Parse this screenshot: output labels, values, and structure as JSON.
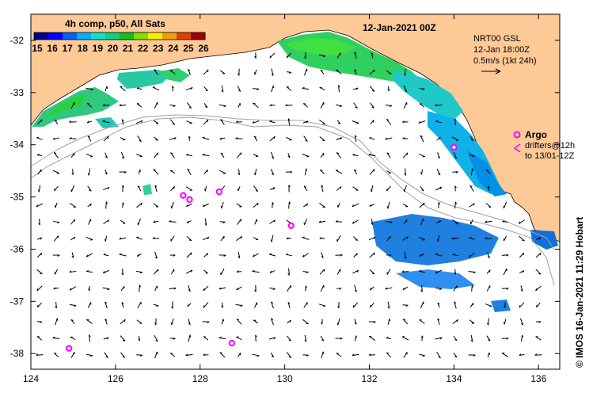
{
  "map": {
    "title": "12-Jan-2021 00Z",
    "colorbar": {
      "title": "4h comp, p50, All Sats",
      "ticks": [
        "15",
        "16",
        "17",
        "18",
        "19",
        "20",
        "21",
        "22",
        "23",
        "24",
        "25",
        "26"
      ],
      "colors": [
        "#00008f",
        "#0000ff",
        "#0060ff",
        "#00b0ff",
        "#10e0d0",
        "#10d080",
        "#10c020",
        "#80e000",
        "#f0f000",
        "#f0a000",
        "#e04000",
        "#a00000"
      ]
    },
    "currents_label": {
      "line1": "NRT00 GSL",
      "line2": "12-Jan 18:00Z",
      "line3": "0.5m/s (1kt 24h)"
    },
    "argo": {
      "label": "Argo",
      "drifters_line1": "drifters@12h",
      "drifters_line2": "to 13/01-12Z",
      "color": "#ff00ff"
    },
    "x_axis": {
      "ticks": [
        "124",
        "126",
        "128",
        "130",
        "132",
        "134",
        "136"
      ],
      "values": [
        124,
        126,
        128,
        130,
        132,
        134,
        136
      ]
    },
    "y_axis": {
      "ticks": [
        "-32",
        "-33",
        "-34",
        "-35",
        "-36",
        "-37",
        "-38"
      ],
      "values": [
        -32,
        -33,
        -34,
        -35,
        -36,
        -37,
        -38
      ]
    },
    "credit": "© IMOS 16-Jan-2021 11:29 Hobart",
    "colors": {
      "land": "#fdc996",
      "ocean": "#ffffff",
      "isobath": "#a0a0a0"
    },
    "argo_floats_lonlat": [
      [
        127.6,
        -34.97
      ],
      [
        127.75,
        -35.05
      ],
      [
        128.45,
        -34.9
      ],
      [
        130.15,
        -35.55
      ],
      [
        124.9,
        -37.9
      ],
      [
        128.75,
        -37.8
      ],
      [
        134.0,
        -34.05
      ]
    ]
  }
}
